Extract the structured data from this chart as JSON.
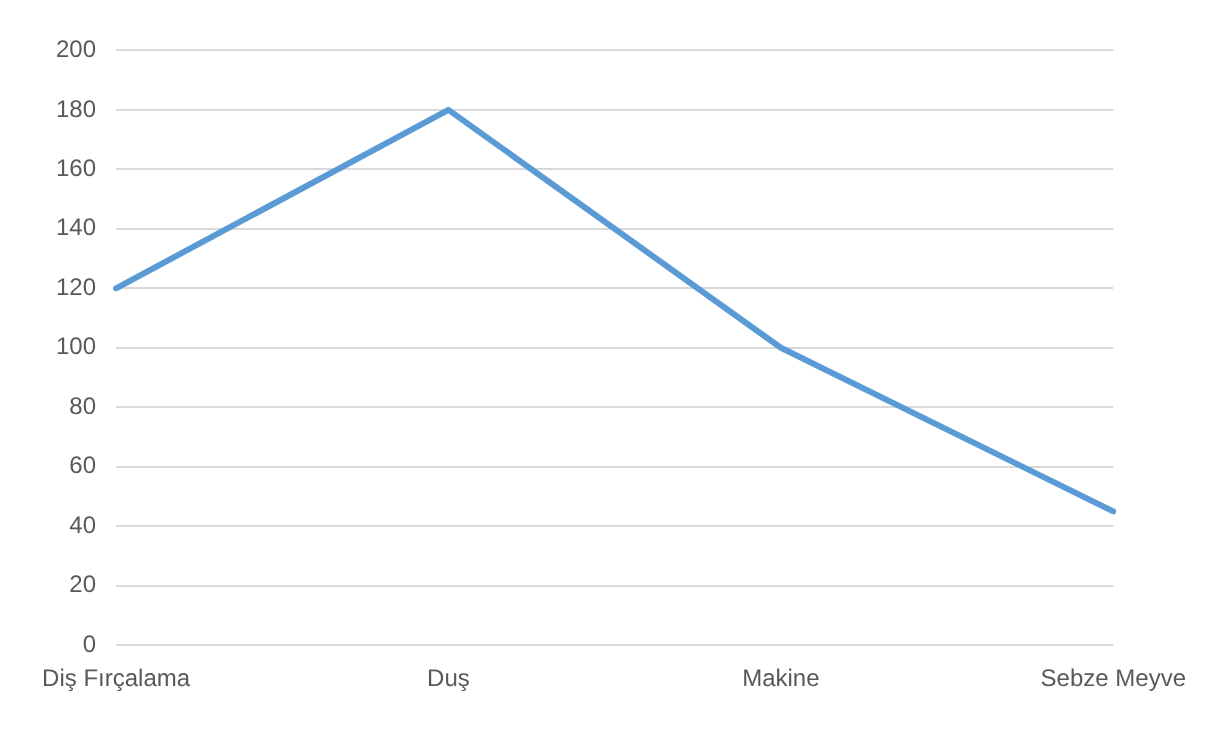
{
  "chart_data": {
    "type": "line",
    "categories": [
      "Diş Fırçalama",
      "Duş",
      "Makine",
      "Sebze Meyve"
    ],
    "series": [
      {
        "color": "#5b9bd5",
        "values": [
          120,
          180,
          100,
          45
        ]
      }
    ],
    "ylim": [
      0,
      200
    ],
    "yticks": [
      0,
      20,
      40,
      60,
      80,
      100,
      120,
      140,
      160,
      180,
      200
    ],
    "grid": "y",
    "legend": false,
    "marker": "none"
  }
}
